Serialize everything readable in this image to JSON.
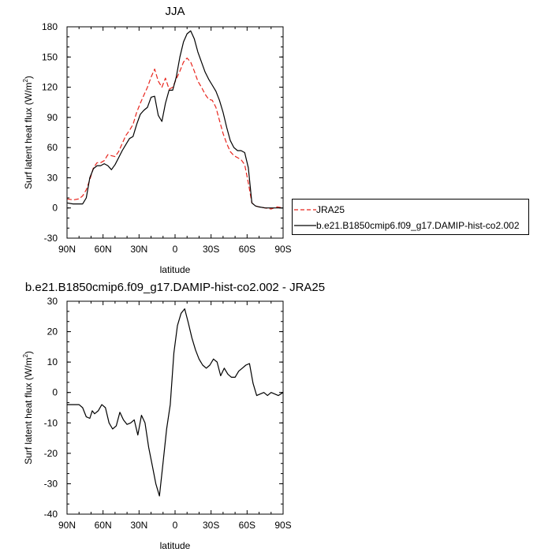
{
  "chart_data": [
    {
      "type": "line",
      "title": "JJA",
      "xlabel": "latitude",
      "ylabel": "Surf latent heat flux (W/m",
      "ylabel_sup": "2",
      "ylabel_close": ")",
      "xlim": [
        90,
        -90
      ],
      "ylim": [
        -30,
        180
      ],
      "xticks": [
        90,
        60,
        30,
        0,
        -30,
        -60,
        -90
      ],
      "xtick_labels": [
        "90N",
        "60N",
        "30N",
        "0",
        "30S",
        "60S",
        "90S"
      ],
      "yticks": [
        -30,
        0,
        30,
        60,
        90,
        120,
        150,
        180
      ],
      "ytick_labels": [
        "-30",
        "0",
        "30",
        "60",
        "90",
        "120",
        "150",
        "180"
      ],
      "legend_position": "right",
      "series": [
        {
          "name": "JRA25",
          "color": "#e8241c",
          "dash": true,
          "x": [
            90,
            85,
            80,
            77,
            74,
            71,
            68,
            65,
            62,
            59,
            56,
            53,
            50,
            47,
            44,
            41,
            38,
            35,
            32,
            29,
            26,
            23,
            20,
            17,
            14,
            11,
            8,
            5,
            2,
            -1,
            -4,
            -7,
            -10,
            -13,
            -16,
            -19,
            -22,
            -25,
            -28,
            -31,
            -34,
            -37,
            -40,
            -43,
            -46,
            -49,
            -52,
            -55,
            -58,
            -61,
            -64,
            -67,
            -70,
            -75,
            -80,
            -85,
            -90
          ],
          "y": [
            9,
            8,
            9,
            12,
            18,
            28,
            40,
            45,
            45,
            47,
            53,
            52,
            51,
            56,
            64,
            72,
            77,
            83,
            95,
            104,
            112,
            120,
            130,
            138,
            126,
            120,
            129,
            118,
            120,
            128,
            136,
            145,
            149,
            145,
            136,
            126,
            120,
            113,
            108,
            107,
            100,
            87,
            74,
            64,
            56,
            52,
            50,
            48,
            43,
            25,
            5,
            2,
            1,
            0,
            -1,
            1,
            0
          ]
        },
        {
          "name": "b.e21.B1850cmip6.f09_g17.DAMIP-hist-co2.002",
          "color": "#000000",
          "dash": false,
          "x": [
            90,
            85,
            80,
            77,
            74,
            71,
            68,
            65,
            62,
            59,
            56,
            53,
            50,
            47,
            44,
            41,
            38,
            35,
            32,
            29,
            26,
            23,
            20,
            17,
            14,
            11,
            8,
            5,
            2,
            -1,
            -4,
            -7,
            -10,
            -13,
            -16,
            -19,
            -22,
            -25,
            -28,
            -31,
            -34,
            -37,
            -40,
            -43,
            -46,
            -49,
            -52,
            -55,
            -58,
            -61,
            -64,
            -67,
            -70,
            -75,
            -80,
            -85,
            -90
          ],
          "y": [
            5,
            4,
            4,
            4,
            10,
            30,
            39,
            42,
            42,
            44,
            42,
            38,
            43,
            50,
            57,
            63,
            69,
            71,
            83,
            93,
            97,
            100,
            110,
            111,
            92,
            86,
            104,
            117,
            117,
            130,
            150,
            165,
            173,
            176,
            168,
            155,
            145,
            135,
            128,
            122,
            116,
            107,
            95,
            80,
            67,
            60,
            57,
            57,
            55,
            40,
            5,
            2,
            1,
            0,
            0,
            0,
            0
          ]
        }
      ]
    },
    {
      "type": "line",
      "title": "b.e21.B1850cmip6.f09_g17.DAMIP-hist-co2.002 - JRA25",
      "xlabel": "latitude",
      "ylabel": "Surf latent heat flux (W/m",
      "ylabel_sup": "2",
      "ylabel_close": ")",
      "xlim": [
        90,
        -90
      ],
      "ylim": [
        -40,
        30
      ],
      "xticks": [
        90,
        60,
        30,
        0,
        -30,
        -60,
        -90
      ],
      "xtick_labels": [
        "90N",
        "60N",
        "30N",
        "0",
        "30S",
        "60S",
        "90S"
      ],
      "yticks": [
        -40,
        -30,
        -20,
        -10,
        0,
        10,
        20,
        30
      ],
      "ytick_labels": [
        "-40",
        "-30",
        "-20",
        "-10",
        "0",
        "10",
        "20",
        "30"
      ],
      "series": [
        {
          "name": "",
          "color": "#000000",
          "dash": false,
          "x": [
            90,
            85,
            80,
            77,
            74,
            71,
            69,
            67,
            64,
            61,
            58,
            55,
            52,
            49,
            46,
            43,
            40,
            37,
            34,
            31,
            28,
            25,
            22,
            19,
            16,
            13,
            10,
            7,
            4,
            1,
            -2,
            -5,
            -8,
            -11,
            -14,
            -17,
            -20,
            -23,
            -26,
            -29,
            -32,
            -35,
            -38,
            -41,
            -44,
            -47,
            -50,
            -53,
            -56,
            -59,
            -62,
            -65,
            -68,
            -71,
            -74,
            -77,
            -80,
            -83,
            -86,
            -90
          ],
          "y": [
            -4,
            -4,
            -4,
            -5,
            -8,
            -8.5,
            -6,
            -7,
            -6,
            -4,
            -5,
            -10,
            -12,
            -11,
            -6.5,
            -9,
            -10.5,
            -10,
            -9,
            -14,
            -7.5,
            -10,
            -18,
            -24,
            -30,
            -34,
            -23,
            -12,
            -4,
            13,
            22,
            26,
            27.5,
            23,
            18,
            14,
            11,
            9,
            8,
            9,
            11,
            10,
            5.5,
            8,
            6,
            5,
            5,
            7,
            8,
            9,
            9.5,
            3,
            -1,
            -0.5,
            0,
            -1,
            0,
            -0.5,
            -1,
            0
          ]
        }
      ]
    }
  ]
}
